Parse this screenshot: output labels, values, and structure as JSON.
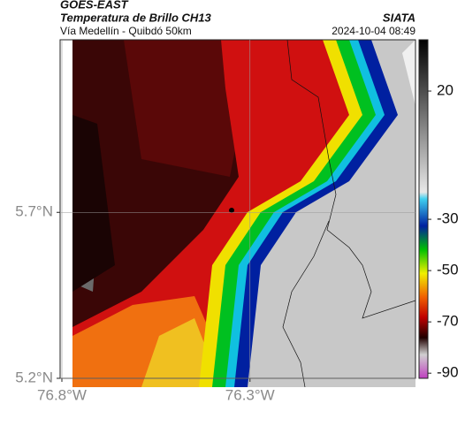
{
  "chart_data": {
    "type": "heatmap",
    "title": "GOES-EAST",
    "subtitle": "Temperatura de Brillo CH13",
    "location": "Vía Medellín - Quibdó 50km",
    "source": "SIATA",
    "timestamp": "2024-10-04 08:49",
    "xlim": [
      -76.8,
      -75.86
    ],
    "ylim": [
      5.2,
      6.22
    ],
    "xticks": [
      {
        "value": -76.8,
        "label": "76.8°W"
      },
      {
        "value": -76.3,
        "label": "76.3°W"
      }
    ],
    "yticks": [
      {
        "value": 5.7,
        "label": "5.7°N"
      },
      {
        "value": 5.2,
        "label": "5.2°N"
      }
    ],
    "grid": true,
    "clim": [
      40,
      -92
    ],
    "cticks": [
      20,
      -30,
      -50,
      -70,
      -90
    ]
  }
}
